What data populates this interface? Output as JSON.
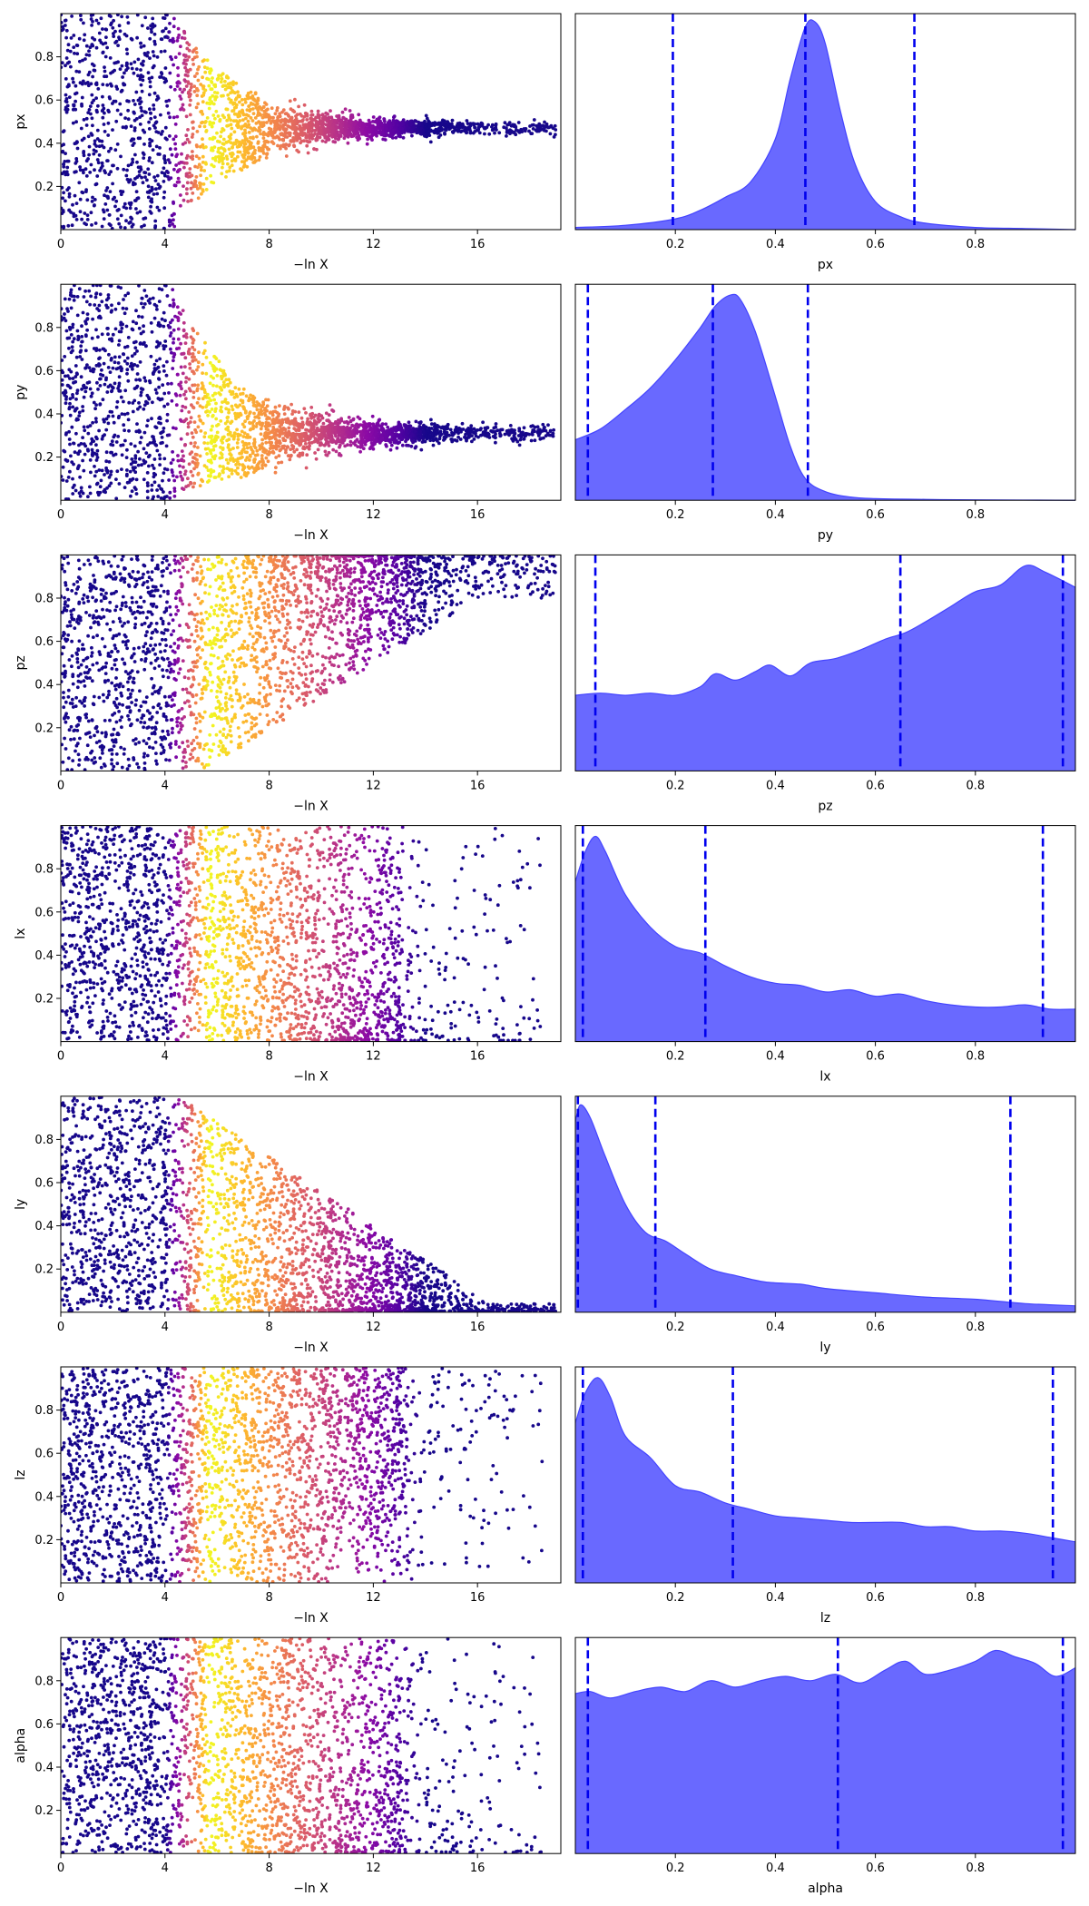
{
  "colors": {
    "scatter_colormap": [
      "#0d0887",
      "#5302a3",
      "#8b0aa5",
      "#b83289",
      "#db5c68",
      "#f48849",
      "#febd2a",
      "#f0f921"
    ],
    "posterior_fill": "#6666ff",
    "posterior_edge": "#4444ff",
    "quantile_line": "#0000ee"
  },
  "chart_data": [
    {
      "type": "scatter",
      "name": "px-trace",
      "xlabel": "−ln X",
      "ylabel": "px",
      "xlim": [
        0,
        19.2
      ],
      "ylim": [
        0,
        1
      ],
      "xticks": [
        "0",
        "4",
        "8",
        "12",
        "16"
      ],
      "yticks": [
        "0.2",
        "0.4",
        "0.6",
        "0.8"
      ],
      "envelope": {
        "center": 0.47,
        "final_halfwidth": 0.03,
        "peak_lnx": 5.5,
        "shrink_rate": 0.18,
        "max_lnx": 19.2
      }
    },
    {
      "type": "area",
      "name": "px-posterior",
      "xlabel": "px",
      "ylim": [
        0,
        1
      ],
      "xticks": [
        "0.2",
        "0.4",
        "0.6",
        "0.8"
      ],
      "x": [
        0.0,
        0.1,
        0.2,
        0.25,
        0.3,
        0.35,
        0.4,
        0.43,
        0.46,
        0.48,
        0.5,
        0.53,
        0.56,
        0.6,
        0.65,
        0.7,
        0.8,
        0.9,
        1.0
      ],
      "y": [
        0.01,
        0.02,
        0.05,
        0.09,
        0.15,
        0.22,
        0.42,
        0.7,
        0.94,
        0.96,
        0.86,
        0.55,
        0.3,
        0.13,
        0.06,
        0.03,
        0.01,
        0.005,
        0.0
      ],
      "quantiles": [
        0.195,
        0.46,
        0.678
      ]
    },
    {
      "type": "scatter",
      "name": "py-trace",
      "xlabel": "−ln X",
      "ylabel": "py",
      "xlim": [
        0,
        19.2
      ],
      "ylim": [
        0,
        1
      ],
      "xticks": [
        "0",
        "4",
        "8",
        "12",
        "16"
      ],
      "yticks": [
        "0.2",
        "0.4",
        "0.6",
        "0.8"
      ],
      "envelope": {
        "center": 0.31,
        "final_halfwidth": 0.04,
        "peak_lnx": 5.5,
        "shrink_rate": 0.17,
        "max_lnx": 19.2
      }
    },
    {
      "type": "area",
      "name": "py-posterior",
      "xlabel": "py",
      "ylim": [
        0,
        1
      ],
      "xticks": [
        "0.2",
        "0.4",
        "0.6",
        "0.8"
      ],
      "x": [
        0.0,
        0.05,
        0.1,
        0.15,
        0.2,
        0.25,
        0.28,
        0.31,
        0.33,
        0.36,
        0.4,
        0.43,
        0.46,
        0.5,
        0.55,
        0.6,
        0.7,
        0.8,
        1.0
      ],
      "y": [
        0.28,
        0.33,
        0.42,
        0.52,
        0.65,
        0.8,
        0.9,
        0.95,
        0.93,
        0.78,
        0.48,
        0.25,
        0.1,
        0.04,
        0.015,
        0.008,
        0.004,
        0.002,
        0.0
      ],
      "quantiles": [
        0.025,
        0.275,
        0.465
      ]
    },
    {
      "type": "scatter",
      "name": "pz-trace",
      "xlabel": "−ln X",
      "ylabel": "pz",
      "xlim": [
        0,
        19.2
      ],
      "ylim": [
        0,
        1
      ],
      "xticks": [
        "0",
        "4",
        "8",
        "12",
        "16"
      ],
      "yticks": [
        "0.2",
        "0.4",
        "0.6",
        "0.8"
      ],
      "envelope": {
        "mode": "lower-rising",
        "start_lnx": 5.5,
        "end_lnx": 16,
        "end_lower": 0.8,
        "max_lnx": 19.2
      }
    },
    {
      "type": "area",
      "name": "pz-posterior",
      "xlabel": "pz",
      "ylim": [
        0,
        1
      ],
      "xticks": [
        "0.2",
        "0.4",
        "0.6",
        "0.8"
      ],
      "x": [
        0.0,
        0.05,
        0.1,
        0.15,
        0.2,
        0.25,
        0.28,
        0.32,
        0.36,
        0.39,
        0.43,
        0.47,
        0.52,
        0.57,
        0.62,
        0.66,
        0.7,
        0.75,
        0.8,
        0.85,
        0.9,
        0.94,
        1.0
      ],
      "y": [
        0.35,
        0.36,
        0.35,
        0.36,
        0.35,
        0.39,
        0.45,
        0.42,
        0.46,
        0.49,
        0.44,
        0.5,
        0.52,
        0.56,
        0.61,
        0.64,
        0.69,
        0.76,
        0.83,
        0.86,
        0.95,
        0.92,
        0.85
      ],
      "quantiles": [
        0.04,
        0.65,
        0.975
      ]
    },
    {
      "type": "scatter",
      "name": "lx-trace",
      "xlabel": "−ln X",
      "ylabel": "lx",
      "xlim": [
        0,
        19.2
      ],
      "ylim": [
        0,
        1
      ],
      "xticks": [
        "0",
        "4",
        "8",
        "12",
        "16"
      ],
      "yticks": [
        "0.2",
        "0.4",
        "0.6",
        "0.8"
      ],
      "envelope": {
        "mode": "fading",
        "fade_start": 12,
        "max_lnx": 19.2,
        "skew": 1.6
      }
    },
    {
      "type": "area",
      "name": "lx-posterior",
      "xlabel": "lx",
      "ylim": [
        0,
        1
      ],
      "xticks": [
        "0.2",
        "0.4",
        "0.6",
        "0.8"
      ],
      "x": [
        0.0,
        0.02,
        0.04,
        0.06,
        0.1,
        0.15,
        0.2,
        0.25,
        0.3,
        0.35,
        0.4,
        0.45,
        0.5,
        0.55,
        0.6,
        0.65,
        0.7,
        0.75,
        0.8,
        0.85,
        0.9,
        0.95,
        1.0
      ],
      "y": [
        0.74,
        0.88,
        0.95,
        0.88,
        0.68,
        0.53,
        0.44,
        0.41,
        0.35,
        0.3,
        0.27,
        0.26,
        0.23,
        0.24,
        0.21,
        0.22,
        0.19,
        0.17,
        0.16,
        0.16,
        0.17,
        0.15,
        0.15
      ],
      "quantiles": [
        0.015,
        0.26,
        0.935
      ]
    },
    {
      "type": "scatter",
      "name": "ly-trace",
      "xlabel": "−ln X",
      "ylabel": "ly",
      "xlim": [
        0,
        19.2
      ],
      "ylim": [
        0,
        1
      ],
      "xticks": [
        "0",
        "4",
        "8",
        "12",
        "16"
      ],
      "yticks": [
        "0.2",
        "0.4",
        "0.6",
        "0.8"
      ],
      "envelope": {
        "mode": "upper-falling",
        "start_lnx": 4.5,
        "end_lnx": 17,
        "max_lnx": 19.2,
        "skew": 1.2
      }
    },
    {
      "type": "area",
      "name": "ly-posterior",
      "xlabel": "ly",
      "ylim": [
        0,
        1
      ],
      "xticks": [
        "0.2",
        "0.4",
        "0.6",
        "0.8"
      ],
      "x": [
        0.0,
        0.01,
        0.03,
        0.06,
        0.1,
        0.14,
        0.18,
        0.22,
        0.27,
        0.32,
        0.38,
        0.45,
        0.5,
        0.6,
        0.7,
        0.8,
        0.9,
        1.0
      ],
      "y": [
        0.88,
        0.96,
        0.9,
        0.72,
        0.5,
        0.37,
        0.33,
        0.27,
        0.2,
        0.17,
        0.14,
        0.13,
        0.11,
        0.09,
        0.07,
        0.06,
        0.04,
        0.03
      ],
      "quantiles": [
        0.005,
        0.16,
        0.87
      ]
    },
    {
      "type": "scatter",
      "name": "lz-trace",
      "xlabel": "−ln X",
      "ylabel": "lz",
      "xlim": [
        0,
        19.2
      ],
      "ylim": [
        0,
        1
      ],
      "xticks": [
        "0",
        "4",
        "8",
        "12",
        "16"
      ],
      "yticks": [
        "0.2",
        "0.4",
        "0.6",
        "0.8"
      ],
      "envelope": {
        "mode": "fading-upper",
        "fade_start": 12,
        "max_lnx": 19.2,
        "skew": 0.6
      }
    },
    {
      "type": "area",
      "name": "lz-posterior",
      "xlabel": "lz",
      "ylim": [
        0,
        1
      ],
      "xticks": [
        "0.2",
        "0.4",
        "0.6",
        "0.8"
      ],
      "x": [
        0.0,
        0.02,
        0.045,
        0.07,
        0.1,
        0.15,
        0.2,
        0.25,
        0.3,
        0.35,
        0.4,
        0.45,
        0.5,
        0.55,
        0.6,
        0.65,
        0.7,
        0.75,
        0.8,
        0.85,
        0.9,
        0.95,
        1.0
      ],
      "y": [
        0.74,
        0.88,
        0.95,
        0.86,
        0.68,
        0.58,
        0.45,
        0.42,
        0.37,
        0.34,
        0.31,
        0.3,
        0.29,
        0.28,
        0.28,
        0.28,
        0.26,
        0.26,
        0.24,
        0.24,
        0.23,
        0.21,
        0.19
      ],
      "quantiles": [
        0.015,
        0.315,
        0.955
      ]
    },
    {
      "type": "scatter",
      "name": "alpha-trace",
      "xlabel": "−ln X",
      "ylabel": "alpha",
      "xlim": [
        0,
        19.2
      ],
      "ylim": [
        0,
        1
      ],
      "xticks": [
        "0",
        "4",
        "8",
        "12",
        "16"
      ],
      "yticks": [
        "0.2",
        "0.4",
        "0.6",
        "0.8"
      ],
      "envelope": {
        "mode": "fading",
        "fade_start": 12,
        "max_lnx": 19.2,
        "skew": 1.0
      }
    },
    {
      "type": "area",
      "name": "alpha-posterior",
      "xlabel": "alpha",
      "ylim": [
        0,
        1
      ],
      "xticks": [
        "0.2",
        "0.4",
        "0.6",
        "0.8"
      ],
      "x": [
        0.0,
        0.03,
        0.07,
        0.12,
        0.17,
        0.22,
        0.27,
        0.32,
        0.37,
        0.42,
        0.47,
        0.52,
        0.57,
        0.62,
        0.66,
        0.7,
        0.75,
        0.8,
        0.84,
        0.88,
        0.92,
        0.96,
        1.0
      ],
      "y": [
        0.74,
        0.75,
        0.72,
        0.75,
        0.77,
        0.75,
        0.8,
        0.77,
        0.8,
        0.82,
        0.8,
        0.83,
        0.79,
        0.85,
        0.89,
        0.83,
        0.85,
        0.89,
        0.94,
        0.91,
        0.88,
        0.82,
        0.86
      ],
      "quantiles": [
        0.025,
        0.525,
        0.975
      ]
    }
  ]
}
